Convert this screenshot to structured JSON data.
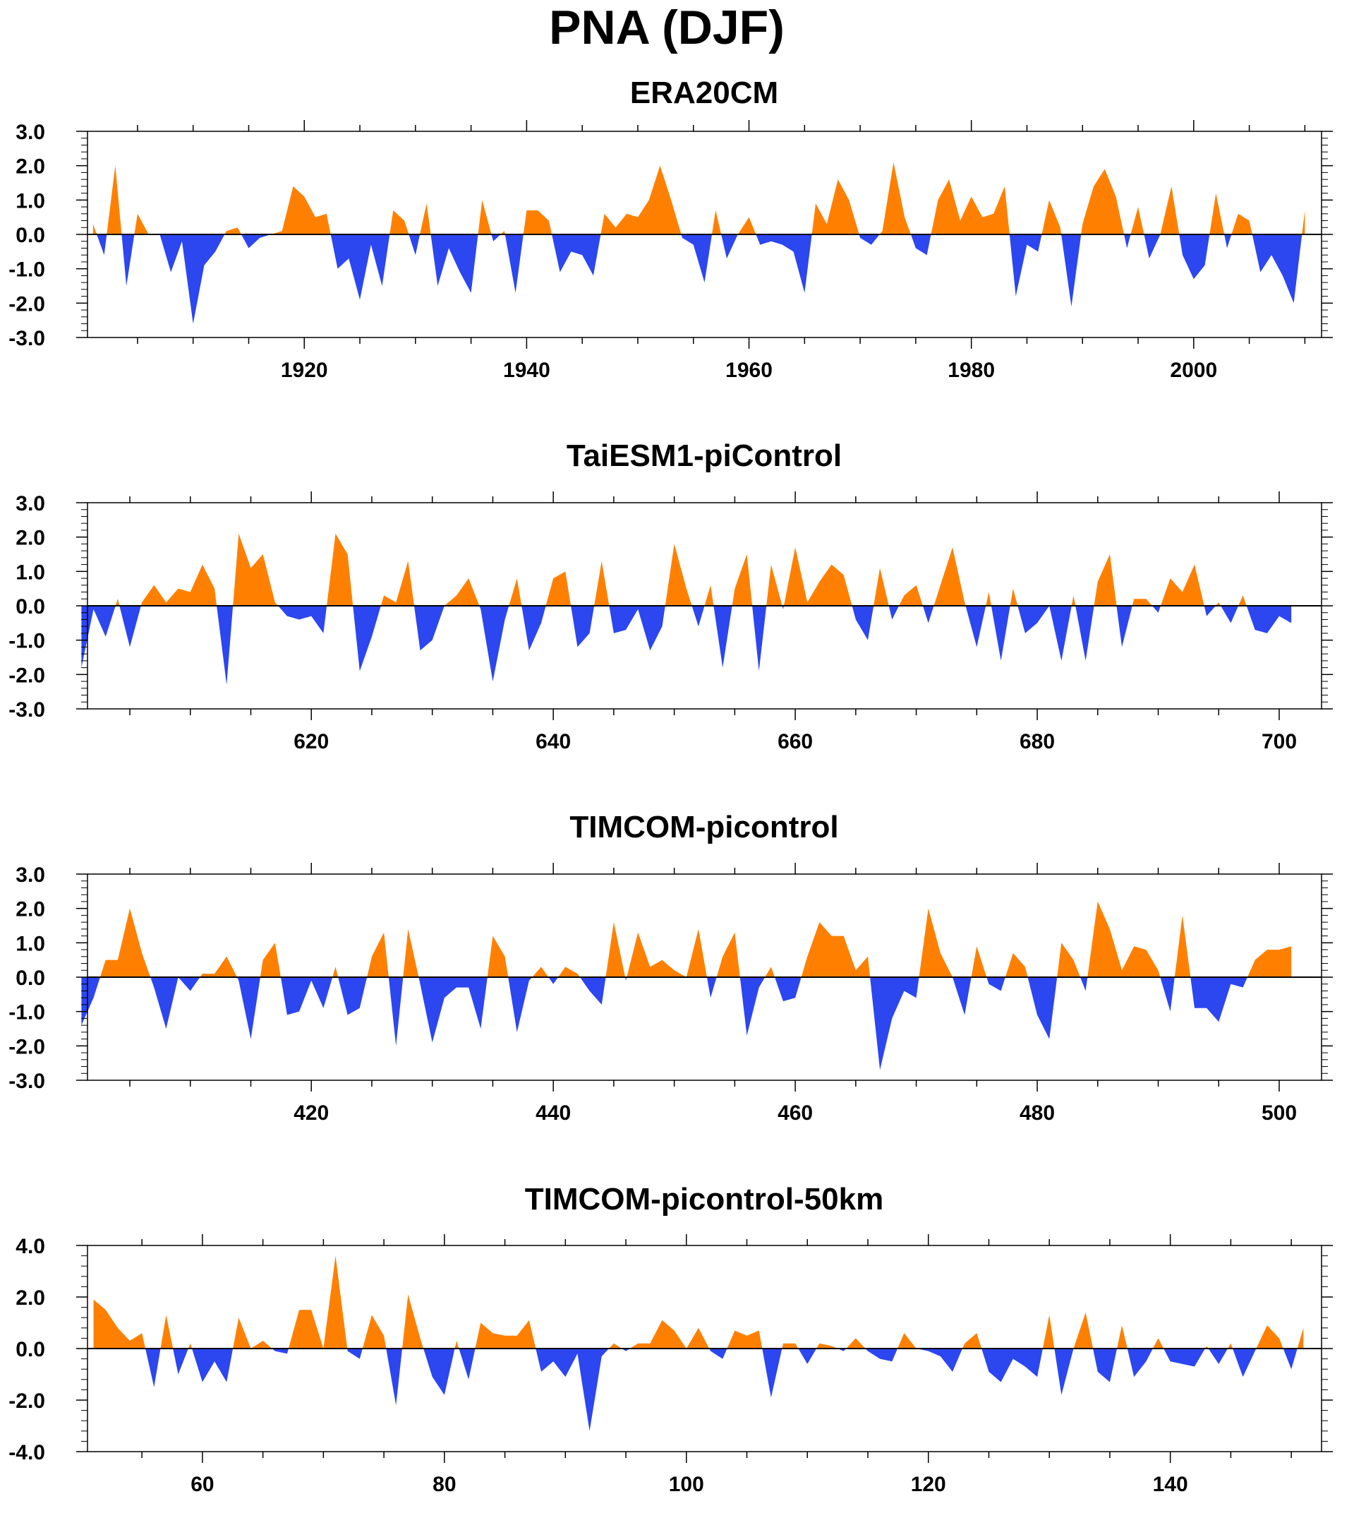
{
  "figure_title": "PNA (DJF)",
  "colors": {
    "positive": "#ff8000",
    "negative": "#2c46f0",
    "axis": "#000000",
    "zero_line": "#000000"
  },
  "chart_data": [
    {
      "type": "area",
      "title": "ERA20CM",
      "xlabel": "",
      "ylabel": "",
      "xlim": [
        1900.5,
        2011.5
      ],
      "ylim": [
        -3,
        3
      ],
      "x_ticks": [
        1920,
        1940,
        1960,
        1980,
        2000
      ],
      "x_tick_labels": [
        "1920",
        "1940",
        "1960",
        "1980",
        "2000"
      ],
      "y_ticks": [
        -3,
        -2,
        -1,
        0,
        1,
        2,
        3
      ],
      "y_tick_labels": [
        "-3.0",
        "-2.0",
        "-1.0",
        "0.0",
        "1.0",
        "2.0",
        "3.0"
      ],
      "x_start": 1901,
      "values": [
        0.3,
        -0.6,
        2.0,
        -1.5,
        0.6,
        0.0,
        0.0,
        -1.1,
        -0.2,
        -2.6,
        -0.9,
        -0.5,
        0.1,
        0.2,
        -0.4,
        -0.1,
        0.0,
        0.1,
        1.4,
        1.1,
        0.5,
        0.6,
        -1.0,
        -0.7,
        -1.9,
        -0.3,
        -1.5,
        0.7,
        0.4,
        -0.6,
        0.9,
        -1.5,
        -0.4,
        -1.1,
        -1.7,
        1.0,
        -0.2,
        0.1,
        -1.7,
        0.7,
        0.7,
        0.4,
        -1.1,
        -0.5,
        -0.6,
        -1.2,
        0.6,
        0.2,
        0.6,
        0.5,
        1.0,
        2.0,
        1.0,
        -0.1,
        -0.3,
        -1.4,
        0.7,
        -0.7,
        0.0,
        0.5,
        -0.3,
        -0.2,
        -0.3,
        -0.5,
        -1.7,
        0.9,
        0.3,
        1.6,
        1.0,
        -0.1,
        -0.3,
        0.1,
        2.1,
        0.5,
        -0.4,
        -0.6,
        1.0,
        1.6,
        0.4,
        1.1,
        0.5,
        0.6,
        1.4,
        -1.8,
        -0.3,
        -0.5,
        1.0,
        0.2,
        -2.1,
        0.3,
        1.4,
        1.9,
        1.1,
        -0.4,
        0.8,
        -0.7,
        0.0,
        1.4,
        -0.6,
        -1.3,
        -0.9,
        1.2,
        -0.4,
        0.6,
        0.4,
        -1.1,
        -0.6,
        -1.2,
        -2.0,
        0.7
      ]
    },
    {
      "type": "area",
      "title": "TaiESM1-piControl",
      "xlabel": "",
      "ylabel": "",
      "xlim": [
        601.5,
        703.5
      ],
      "ylim": [
        -3,
        3
      ],
      "x_ticks": [
        620,
        640,
        660,
        680,
        700
      ],
      "x_tick_labels": [
        "620",
        "640",
        "660",
        "680",
        "700"
      ],
      "y_ticks": [
        -3,
        -2,
        -1,
        0,
        1,
        2,
        3
      ],
      "y_tick_labels": [
        "-3.0",
        "-2.0",
        "-1.0",
        "0.0",
        "1.0",
        "2.0",
        "3.0"
      ],
      "x_start": 601,
      "values": [
        -1.8,
        -0.1,
        -0.9,
        0.2,
        -1.2,
        0.1,
        0.6,
        0.1,
        0.5,
        0.4,
        1.2,
        0.5,
        -2.3,
        2.1,
        1.1,
        1.5,
        0.1,
        -0.3,
        -0.4,
        -0.3,
        -0.8,
        2.1,
        1.5,
        -1.9,
        -0.9,
        0.3,
        0.1,
        1.3,
        -1.3,
        -1.0,
        0.0,
        0.3,
        0.8,
        -0.1,
        -2.2,
        -0.4,
        0.8,
        -1.3,
        -0.5,
        0.8,
        1.0,
        -1.2,
        -0.8,
        1.3,
        -0.8,
        -0.7,
        -0.1,
        -1.3,
        -0.6,
        1.8,
        0.5,
        -0.6,
        0.6,
        -1.8,
        0.5,
        1.5,
        -1.9,
        1.2,
        -0.1,
        1.7,
        0.1,
        0.7,
        1.2,
        0.9,
        -0.4,
        -1.0,
        1.1,
        -0.4,
        0.3,
        0.6,
        -0.5,
        0.6,
        1.7,
        0.1,
        -1.2,
        0.4,
        -1.6,
        0.5,
        -0.8,
        -0.5,
        0.0,
        -1.6,
        0.3,
        -1.6,
        0.7,
        1.5,
        -1.2,
        0.2,
        0.2,
        -0.2,
        0.8,
        0.4,
        1.2,
        -0.3,
        0.1,
        -0.5,
        0.3,
        -0.7,
        -0.8,
        -0.3,
        -0.5
      ]
    },
    {
      "type": "area",
      "title": "TIMCOM-picontrol",
      "xlabel": "",
      "ylabel": "",
      "xlim": [
        401.5,
        503.5
      ],
      "ylim": [
        -3,
        3
      ],
      "x_ticks": [
        420,
        440,
        460,
        480,
        500
      ],
      "x_tick_labels": [
        "420",
        "440",
        "460",
        "480",
        "500"
      ],
      "y_ticks": [
        -3,
        -2,
        -1,
        0,
        1,
        2,
        3
      ],
      "y_tick_labels": [
        "-3.0",
        "-2.0",
        "-1.0",
        "0.0",
        "1.0",
        "2.0",
        "3.0"
      ],
      "x_start": 401,
      "values": [
        -1.4,
        -0.6,
        0.5,
        0.5,
        2.0,
        0.7,
        -0.3,
        -1.5,
        0.0,
        -0.4,
        0.1,
        0.1,
        0.6,
        -0.1,
        -1.8,
        0.5,
        1.0,
        -1.1,
        -1.0,
        -0.1,
        -0.9,
        0.3,
        -1.1,
        -0.9,
        0.6,
        1.3,
        -2.0,
        1.4,
        -0.2,
        -1.9,
        -0.6,
        -0.3,
        -0.3,
        -1.5,
        1.2,
        0.6,
        -1.6,
        -0.1,
        0.3,
        -0.2,
        0.3,
        0.1,
        -0.4,
        -0.8,
        1.6,
        -0.1,
        1.3,
        0.3,
        0.5,
        0.2,
        0.0,
        1.4,
        -0.6,
        0.6,
        1.3,
        -1.7,
        -0.3,
        0.3,
        -0.7,
        -0.6,
        0.6,
        1.6,
        1.2,
        1.2,
        0.2,
        0.6,
        -2.7,
        -1.2,
        -0.4,
        -0.6,
        2.0,
        0.7,
        0.0,
        -1.1,
        0.9,
        -0.2,
        -0.4,
        0.7,
        0.3,
        -1.1,
        -1.8,
        1.0,
        0.5,
        -0.4,
        2.2,
        1.4,
        0.2,
        0.9,
        0.8,
        0.2,
        -1.0,
        1.8,
        -0.9,
        -0.9,
        -1.3,
        -0.2,
        -0.3,
        0.5,
        0.8,
        0.8,
        0.9
      ]
    },
    {
      "type": "area",
      "title": "TIMCOM-picontrol-50km",
      "xlabel": "",
      "ylabel": "",
      "xlim": [
        50.5,
        152.5
      ],
      "ylim": [
        -4,
        4
      ],
      "x_ticks": [
        60,
        80,
        100,
        120,
        140
      ],
      "x_tick_labels": [
        "60",
        "80",
        "100",
        "120",
        "140"
      ],
      "y_ticks": [
        -4,
        -2,
        0,
        2,
        4
      ],
      "y_tick_labels": [
        "-4.0",
        "-2.0",
        "0.0",
        "2.0",
        "4.0"
      ],
      "x_start": 51,
      "values": [
        1.9,
        1.5,
        0.8,
        0.3,
        0.6,
        -1.5,
        1.3,
        -1.0,
        0.2,
        -1.3,
        -0.5,
        -1.3,
        1.2,
        0.0,
        0.3,
        -0.1,
        -0.2,
        1.5,
        1.5,
        0.0,
        3.6,
        -0.1,
        -0.4,
        1.3,
        0.5,
        -2.2,
        2.1,
        0.4,
        -1.1,
        -1.8,
        0.3,
        -1.2,
        1.0,
        0.6,
        0.5,
        0.5,
        1.1,
        -0.9,
        -0.5,
        -1.1,
        -0.2,
        -3.2,
        -0.3,
        0.2,
        -0.1,
        0.2,
        0.2,
        1.1,
        0.7,
        0.0,
        0.8,
        -0.1,
        -0.4,
        0.7,
        0.5,
        0.7,
        -1.9,
        0.2,
        0.2,
        -0.6,
        0.2,
        0.1,
        -0.1,
        0.4,
        -0.1,
        -0.4,
        -0.5,
        0.6,
        0.0,
        -0.1,
        -0.3,
        -0.9,
        0.2,
        0.6,
        -0.9,
        -1.3,
        -0.4,
        -0.7,
        -1.1,
        1.3,
        -1.8,
        0.0,
        1.4,
        -0.9,
        -1.3,
        0.9,
        -1.1,
        -0.5,
        0.4,
        -0.5,
        -0.6,
        -0.7,
        0.1,
        -0.6,
        0.2,
        -1.1,
        -0.1,
        0.9,
        0.4,
        -0.8,
        0.8
      ]
    }
  ]
}
